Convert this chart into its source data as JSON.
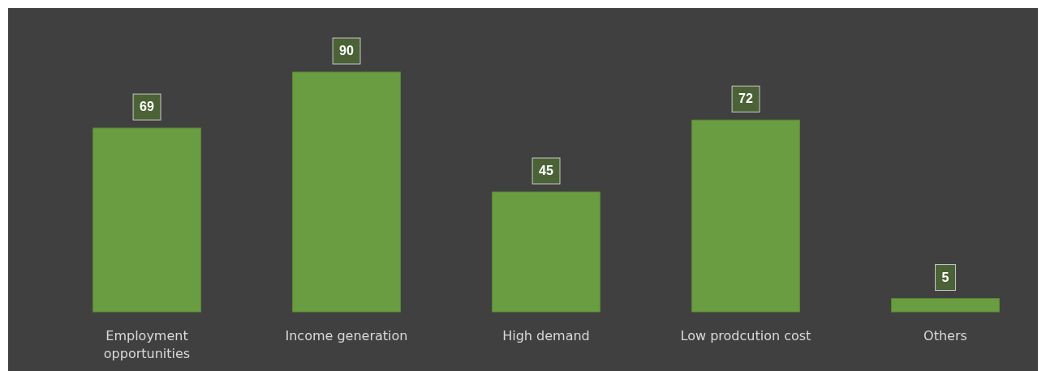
{
  "chart_data": {
    "type": "bar",
    "categories": [
      "Employment opportunities",
      "Income generation",
      "High demand",
      "Low prodcution cost",
      "Others"
    ],
    "values": [
      69,
      90,
      45,
      72,
      5
    ],
    "color": "#6a9d41",
    "data_labels": true
  }
}
